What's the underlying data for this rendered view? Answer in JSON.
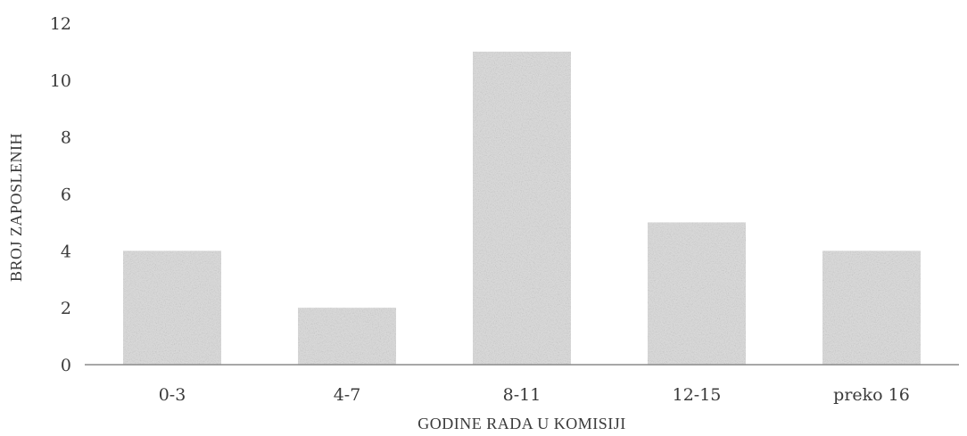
{
  "chart_data": {
    "type": "bar",
    "categories": [
      "0-3",
      "4-7",
      "8-11",
      "12-15",
      "preko 16"
    ],
    "values": [
      4,
      2,
      11,
      5,
      4
    ],
    "title": "",
    "xlabel": "GODINE RADA U KOMISIJI",
    "ylabel": "BROJ ZAPOSLENIH",
    "ylim": [
      0,
      12
    ],
    "yticks": [
      0,
      2,
      4,
      6,
      8,
      10,
      12
    ],
    "grid": false,
    "legend": "none",
    "bar_color": "#d9d9d9",
    "axis_color": "#8a8a8a"
  }
}
